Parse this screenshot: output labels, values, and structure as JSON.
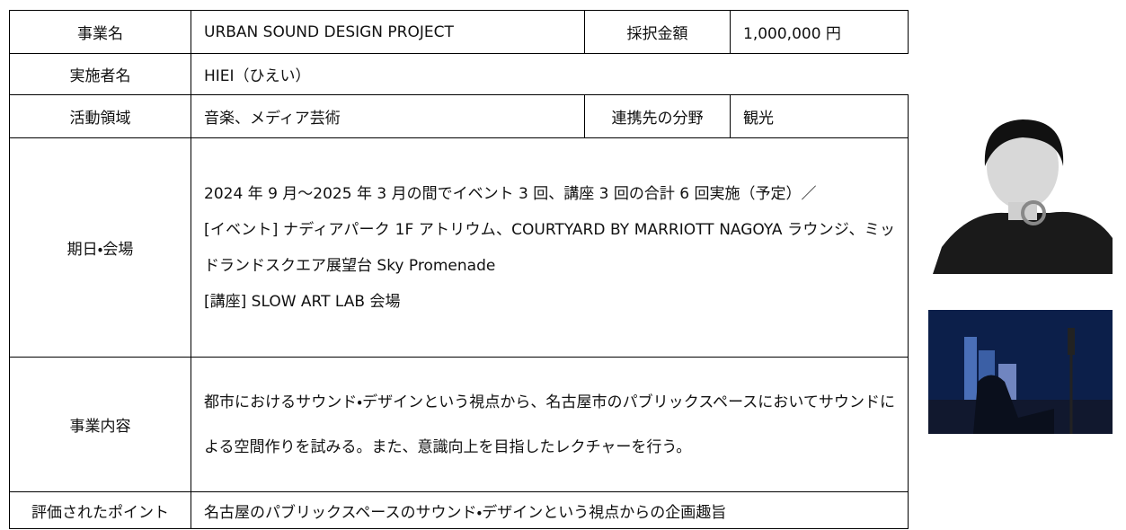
{
  "table": {
    "rows": [
      [
        "事業名",
        "URBAN SOUND DESIGN PROJECT",
        "採択金額",
        "1,000,000 円"
      ],
      [
        "実施者名",
        "HIEI（ひえい）"
      ],
      [
        "活動領域",
        "音楽、メディア芸術",
        "連携先の分野",
        "観光"
      ],
      [
        "期日・会場",
        [
          "2024 年 9 月～2025 年 3 月の間でイベント 3 回、講座 3 回の合計 6 回実施（予定）／",
          "[イベント] ナディアパーク 1F アトリウム、COURTYARD BY MARRIOTT NAGOYA ラウンジ、ミッドランドスクエア展望台 Sky Promenade",
          "[講座] SLOW ART LAB 会場"
        ]
      ],
      [
        "事業内容",
        [
          "都市におけるサウンド・デザインという視点から、名古屋市のパブリックスペースにおいてサウンドによる空間作りを試みる。また、意識向上を目指したレクチャーを行う。"
        ]
      ],
      [
        "評価されたポイント",
        "名古屋のパブリックスペースのサウンド・デザインという視点からの企画趣旨"
      ]
    ]
  }
}
